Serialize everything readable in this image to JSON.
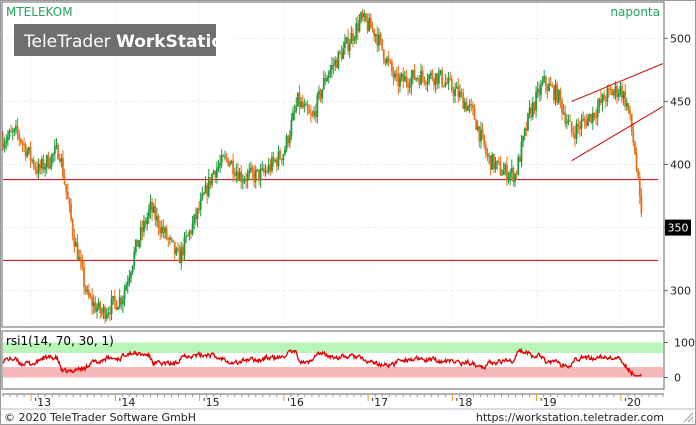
{
  "header": {
    "symbol": "MTELEKOM",
    "period": "naponta",
    "watermark_brand": "TeleTrader",
    "watermark_product": "WorkStation"
  },
  "footer": {
    "copyright": "© 2020 TeleTrader Software GmbH",
    "url": "https://workstation.teletrader.com"
  },
  "colors": {
    "accent_green": "#22a55a",
    "up_candle": "#1f9a3a",
    "down_candle": "#e8701c",
    "line_red": "#cc0000",
    "rsi_line": "#dd0000",
    "rsi_overbought_band": "#b8f5b8",
    "rsi_oversold_band": "#f5b8b8",
    "year_tick": "#e8a020",
    "last_price_label_bg": "#000000"
  },
  "chart_data": [
    {
      "type": "candlestick",
      "title": "MTELEKOM",
      "grid": true,
      "x_ticks": [
        "'13",
        "'14",
        "'15",
        "'16",
        "'17",
        "'18",
        "'19",
        "'20"
      ],
      "y_ticks": [
        300,
        350,
        400,
        450,
        500
      ],
      "ylim": [
        272,
        528
      ],
      "last_price_label": "350",
      "price_path": [
        [
          "2012-09",
          420
        ],
        [
          "2012-11",
          425
        ],
        [
          "2013-02",
          395
        ],
        [
          "2013-05",
          412
        ],
        [
          "2013-07",
          345
        ],
        [
          "2013-09",
          295
        ],
        [
          "2013-11",
          282
        ],
        [
          "2014-02",
          295
        ],
        [
          "2014-04",
          335
        ],
        [
          "2014-06",
          365
        ],
        [
          "2014-08",
          345
        ],
        [
          "2014-10",
          325
        ],
        [
          "2015-01",
          365
        ],
        [
          "2015-03",
          395
        ],
        [
          "2015-05",
          405
        ],
        [
          "2015-07",
          390
        ],
        [
          "2015-10",
          392
        ],
        [
          "2016-01",
          410
        ],
        [
          "2016-03",
          450
        ],
        [
          "2016-05",
          435
        ],
        [
          "2016-07",
          470
        ],
        [
          "2016-10",
          495
        ],
        [
          "2016-12",
          515
        ],
        [
          "2017-02",
          505
        ],
        [
          "2017-05",
          465
        ],
        [
          "2017-08",
          470
        ],
        [
          "2017-11",
          470
        ],
        [
          "2018-02",
          455
        ],
        [
          "2018-04",
          440
        ],
        [
          "2018-06",
          405
        ],
        [
          "2018-08",
          395
        ],
        [
          "2018-10",
          392
        ],
        [
          "2018-12",
          440
        ],
        [
          "2019-02",
          465
        ],
        [
          "2019-04",
          455
        ],
        [
          "2019-06",
          425
        ],
        [
          "2019-09",
          440
        ],
        [
          "2019-11",
          455
        ],
        [
          "2020-01",
          460
        ],
        [
          "2020-02",
          445
        ],
        [
          "2020-03",
          410
        ],
        [
          "2020-04",
          352
        ]
      ],
      "horizontal_lines": [
        388,
        324
      ],
      "trend_channel": {
        "upper": [
          [
            "2019-06",
            450
          ],
          [
            "2020-07",
            480
          ]
        ],
        "lower": [
          [
            "2019-06",
            403
          ],
          [
            "2020-07",
            446
          ]
        ]
      }
    },
    {
      "type": "line",
      "title": "rsi1(14, 70, 30, 1)",
      "y_ticks": [
        0,
        100
      ],
      "upper_band": 70,
      "lower_band": 30,
      "ylim": [
        -30,
        130
      ],
      "series_level": 50
    }
  ]
}
